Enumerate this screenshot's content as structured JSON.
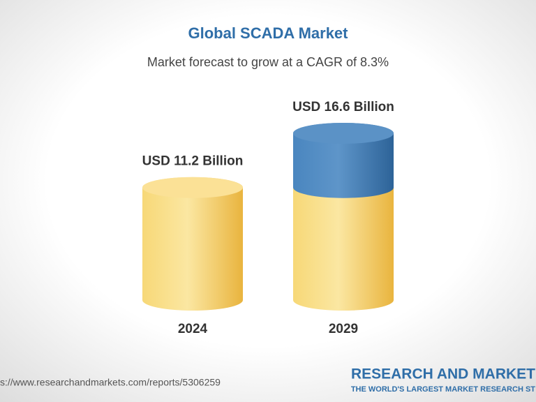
{
  "chart_data": {
    "type": "cylinder",
    "title": "Global SCADA Market",
    "subtitle": "Market forecast to grow at a CAGR of 8.3%",
    "categories": [
      "2024",
      "2029"
    ],
    "values": [
      11.2,
      16.6
    ],
    "value_labels": [
      "USD 11.2 Billion",
      "USD 16.6 Billion"
    ],
    "colors": {
      "base": "#f1c656",
      "growth": "#3f7db5"
    },
    "source": "s://www.researchandmarkets.com/reports/5306259",
    "logo": {
      "name": "RESEARCH AND MARKET",
      "tagline": "THE WORLD'S LARGEST MARKET RESEARCH ST"
    }
  }
}
